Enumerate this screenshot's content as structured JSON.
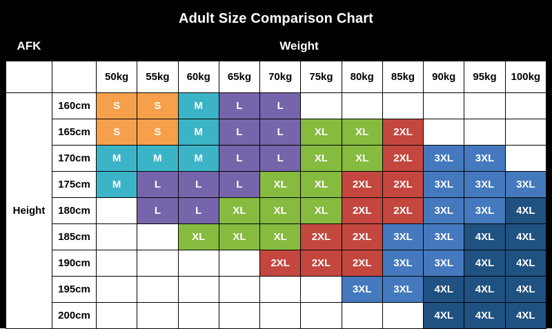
{
  "title": "Adult Size Comparison Chart",
  "corner_label": "AFK",
  "weight_header": "Weight",
  "height_header": "Height",
  "chart_data": {
    "type": "table",
    "title": "Adult Size Comparison Chart",
    "xlabel": "Weight",
    "ylabel": "Height",
    "weight_columns": [
      "50kg",
      "55kg",
      "60kg",
      "65kg",
      "70kg",
      "75kg",
      "80kg",
      "85kg",
      "90kg",
      "95kg",
      "100kg"
    ],
    "height_rows": [
      "160cm",
      "165cm",
      "170cm",
      "175cm",
      "180cm",
      "185cm",
      "190cm",
      "195cm",
      "200cm"
    ],
    "cells": [
      [
        "S",
        "S",
        "M",
        "L",
        "L",
        "",
        "",
        "",
        "",
        "",
        ""
      ],
      [
        "S",
        "S",
        "M",
        "L",
        "L",
        "XL",
        "XL",
        "2XL",
        "",
        "",
        ""
      ],
      [
        "M",
        "M",
        "M",
        "L",
        "L",
        "XL",
        "XL",
        "2XL",
        "3XL",
        "3XL",
        ""
      ],
      [
        "M",
        "L",
        "L",
        "L",
        "XL",
        "XL",
        "2XL",
        "2XL",
        "3XL",
        "3XL",
        "3XL"
      ],
      [
        "",
        "L",
        "L",
        "XL",
        "XL",
        "XL",
        "2XL",
        "2XL",
        "3XL",
        "3XL",
        "4XL"
      ],
      [
        "",
        "",
        "XL",
        "XL",
        "XL",
        "2XL",
        "2XL",
        "3XL",
        "3XL",
        "4XL",
        "4XL"
      ],
      [
        "",
        "",
        "",
        "",
        "2XL",
        "2XL",
        "2XL",
        "3XL",
        "3XL",
        "4XL",
        "4XL"
      ],
      [
        "",
        "",
        "",
        "",
        "",
        "",
        "3XL",
        "3XL",
        "4XL",
        "4XL",
        "4XL"
      ],
      [
        "",
        "",
        "",
        "",
        "",
        "",
        "",
        "",
        "4XL",
        "4XL",
        "4XL"
      ]
    ],
    "size_colors": {
      "S": "#F7A04B",
      "M": "#3CB4C7",
      "L": "#7765AB",
      "XL": "#86BB40",
      "2XL": "#C4473F",
      "3XL": "#4579BE",
      "4XL": "#1F5181"
    },
    "grid": true,
    "border_color": "#000000",
    "frame_color": "#000000",
    "text_color_on_fill": "#ffffff"
  }
}
